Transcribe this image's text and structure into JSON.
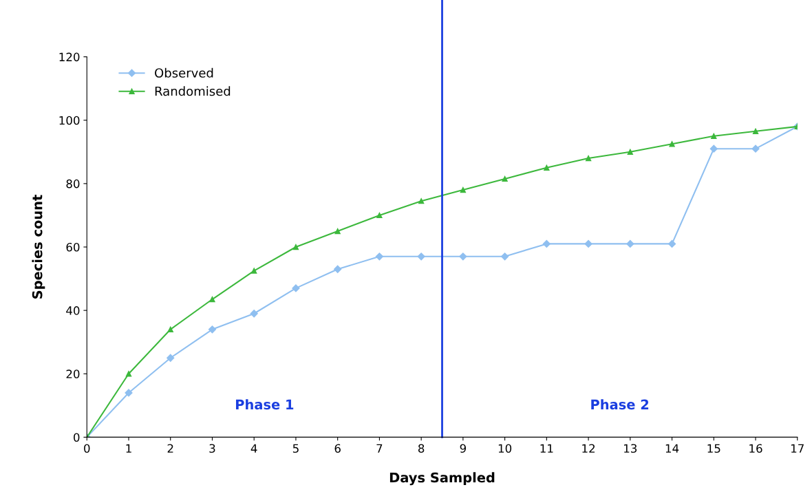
{
  "chart_data": {
    "type": "line",
    "xlabel": "Days Sampled",
    "ylabel": "Species count",
    "x": [
      0,
      1,
      2,
      3,
      4,
      5,
      6,
      7,
      8,
      9,
      10,
      11,
      12,
      13,
      14,
      15,
      16,
      17
    ],
    "series": [
      {
        "name": "Observed",
        "color": "#8fbff0",
        "marker": "diamond",
        "values": [
          0,
          14,
          25,
          34,
          39,
          47,
          53,
          57,
          57,
          57,
          57,
          61,
          61,
          61,
          61,
          91,
          91,
          98
        ]
      },
      {
        "name": "Randomised",
        "color": "#3cb83c",
        "marker": "triangle",
        "values": [
          0,
          20,
          34,
          43.5,
          52.5,
          60,
          65,
          70,
          74.5,
          78,
          81.5,
          85,
          88,
          90,
          92.5,
          95,
          96.5,
          98
        ]
      }
    ],
    "xlim": [
      0,
      17
    ],
    "xticks": [
      0,
      1,
      2,
      3,
      4,
      5,
      6,
      7,
      8,
      9,
      10,
      11,
      12,
      13,
      14,
      15,
      16,
      17
    ],
    "ylim": [
      0,
      120
    ],
    "yticks": [
      0,
      20,
      40,
      60,
      80,
      100,
      120
    ],
    "ref_lines": [
      {
        "axis": "x",
        "value": 8.5,
        "color": "#1a3ee0"
      }
    ],
    "annotations": [
      "Phase 1",
      "Phase 2"
    ],
    "grid": false,
    "legend": "top left"
  }
}
